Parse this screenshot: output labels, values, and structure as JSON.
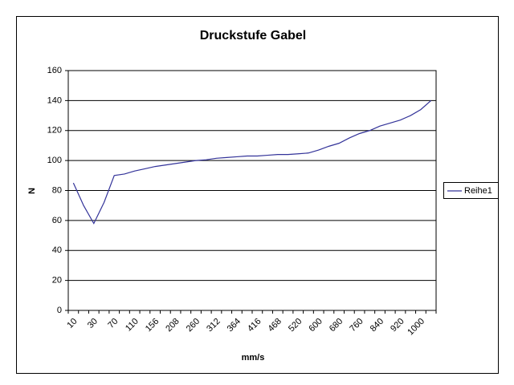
{
  "chart_data": {
    "type": "line",
    "title": "Druckstufe Gabel",
    "x_label": "mm/s",
    "y_label": "N",
    "categories": [
      "10",
      null,
      "30",
      null,
      "70",
      null,
      "110",
      null,
      "156",
      null,
      "208",
      null,
      "260",
      null,
      "312",
      null,
      "364",
      null,
      "416",
      null,
      "468",
      null,
      "520",
      null,
      "600",
      null,
      "680",
      null,
      "760",
      null,
      "840",
      null,
      "920",
      null,
      "1000",
      null
    ],
    "series": [
      {
        "name": "Reihe1",
        "color": "#333399",
        "values": [
          85,
          70,
          58,
          72,
          90,
          91,
          93,
          94.5,
          96,
          97,
          98,
          99,
          100,
          100.5,
          101.5,
          102,
          102.5,
          103,
          103,
          103.5,
          104,
          104,
          104.5,
          105,
          107,
          109.5,
          111.5,
          115,
          118,
          120,
          123,
          125,
          127,
          130,
          134,
          140
        ]
      }
    ],
    "ylim": [
      0,
      160
    ],
    "yticks": [
      0,
      20,
      40,
      60,
      80,
      100,
      120,
      140,
      160
    ],
    "grid": true,
    "legend": "right"
  }
}
